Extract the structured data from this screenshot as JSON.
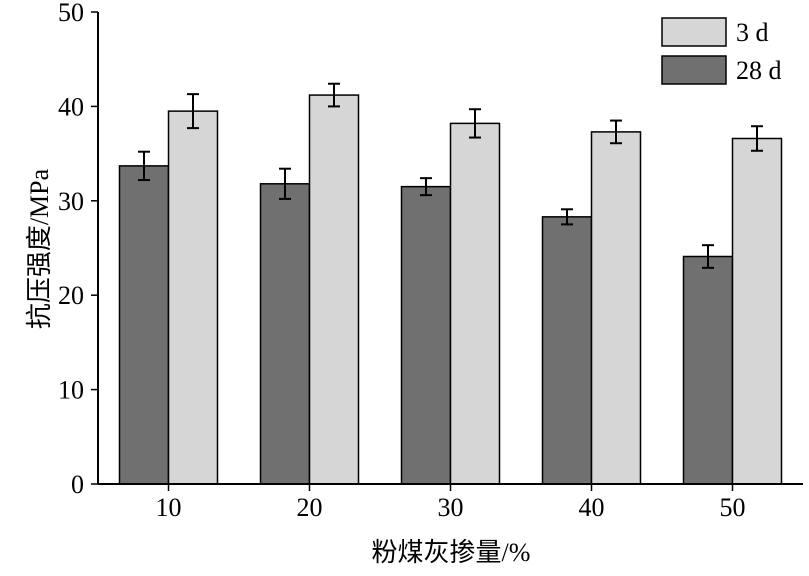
{
  "chart_data": {
    "type": "bar",
    "title": "",
    "xlabel": "粉煤灰掺量/%",
    "ylabel": "抗压强度/MPa",
    "categories": [
      "10",
      "20",
      "30",
      "40",
      "50"
    ],
    "ylim": [
      0,
      50
    ],
    "yticks": [
      "0",
      "10",
      "20",
      "30",
      "40",
      "50"
    ],
    "grid": false,
    "legend_position": "top-right",
    "series": [
      {
        "name": "28 d",
        "color": "#707070",
        "values": [
          33.7,
          31.8,
          31.5,
          28.3,
          24.1
        ],
        "errors": [
          1.5,
          1.6,
          0.9,
          0.8,
          1.2
        ]
      },
      {
        "name": "3 d",
        "color": "#d6d6d6",
        "values": [
          39.5,
          41.2,
          38.2,
          37.3,
          36.6
        ],
        "errors": [
          1.8,
          1.2,
          1.5,
          1.2,
          1.3
        ]
      }
    ],
    "legend_order": [
      "3 d",
      "28 d"
    ]
  }
}
